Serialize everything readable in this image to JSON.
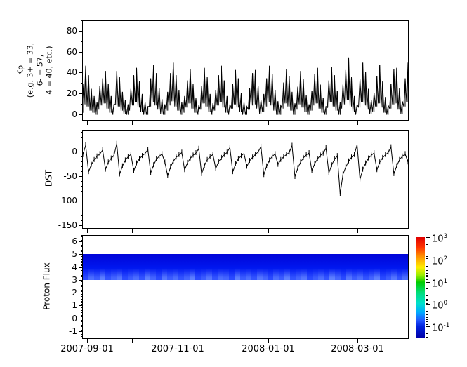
{
  "figure": {
    "background": "#ffffff",
    "frame_color": "#000000",
    "series_color": "#000000"
  },
  "panels": {
    "kp": {
      "ylabel": "Kp\n(e.g. 3+ = 33,\n6- = 57,\n4 = 40, etc.)"
    },
    "dst": {
      "ylabel": "DST"
    },
    "proton": {
      "ylabel": "Proton Flux"
    }
  },
  "xaxis": {
    "span_days": 219,
    "month_ticks": [
      {
        "day": 3,
        "label": "2007-09-01"
      },
      {
        "day": 33,
        "label": ""
      },
      {
        "day": 64,
        "label": "2007-11-01"
      },
      {
        "day": 94,
        "label": ""
      },
      {
        "day": 125,
        "label": "2008-01-01"
      },
      {
        "day": 156,
        "label": ""
      },
      {
        "day": 185,
        "label": "2008-03-01"
      },
      {
        "day": 216,
        "label": ""
      }
    ]
  },
  "colorbar": {
    "scale": "log",
    "ticks": [
      {
        "exp": 3,
        "base": "10",
        "sup": "3"
      },
      {
        "exp": 2,
        "base": "10",
        "sup": "2"
      },
      {
        "exp": 1,
        "base": "10",
        "sup": "1"
      },
      {
        "exp": 0,
        "base": "10",
        "sup": "0"
      },
      {
        "exp": -1,
        "base": "10",
        "sup": "-1"
      }
    ],
    "gradient": [
      "#e00000 0%",
      "#ff3300 10%",
      "#ff9900 20%",
      "#ffee00 30%",
      "#99ee00 38%",
      "#00cc00 45%",
      "#00dd77 55%",
      "#00e0cc 66%",
      "#00aaff 75%",
      "#2255ff 83%",
      "#0022dd 89%",
      "#0000aa 100%"
    ]
  },
  "chart_data": [
    {
      "type": "line",
      "name": "Kp",
      "ylabel": "Kp (e.g. 3+ = 33, 6- = 57, 4 = 40, etc.)",
      "ylim": [
        -5,
        90
      ],
      "yticks": [
        0,
        20,
        40,
        60,
        80
      ],
      "minor_step": 10,
      "x_start": "2007-08-29",
      "x_end": "2008-04-03",
      "series": [
        {
          "name": "kp_low_envelope",
          "values": [
            2,
            10,
            8,
            4,
            2,
            0,
            5,
            9,
            11,
            6,
            2,
            0,
            10,
            8,
            4,
            1,
            0,
            4,
            9,
            12,
            7,
            3,
            0,
            0,
            8,
            12,
            9,
            5,
            1,
            0,
            4,
            9,
            13,
            8,
            4,
            0,
            2,
            7,
            11,
            6,
            2,
            0,
            5,
            11,
            8,
            3,
            0,
            4,
            9,
            12,
            7,
            2,
            0,
            6,
            10,
            7,
            3,
            0,
            0,
            5,
            9,
            10,
            6,
            1,
            3,
            8,
            12,
            9,
            4,
            0,
            0,
            6,
            11,
            8,
            4,
            0,
            5,
            10,
            7,
            3,
            0,
            4,
            9,
            11,
            6,
            2,
            0,
            7,
            12,
            8,
            4,
            0,
            6,
            10,
            14,
            8,
            3,
            0,
            7,
            12,
            9,
            5,
            1,
            3,
            8,
            11,
            7,
            2,
            0,
            6,
            10,
            11,
            5,
            1,
            8,
            12
          ]
        },
        {
          "name": "kp_high_envelope",
          "values": [
            30,
            47,
            38,
            25,
            18,
            12,
            28,
            35,
            42,
            30,
            18,
            10,
            42,
            36,
            22,
            14,
            10,
            25,
            38,
            45,
            32,
            20,
            12,
            8,
            35,
            48,
            40,
            26,
            15,
            10,
            22,
            40,
            50,
            38,
            24,
            12,
            18,
            33,
            44,
            30,
            16,
            9,
            28,
            45,
            36,
            20,
            11,
            24,
            38,
            47,
            33,
            18,
            10,
            30,
            43,
            35,
            21,
            12,
            8,
            26,
            40,
            43,
            28,
            14,
            20,
            35,
            47,
            39,
            24,
            13,
            9,
            31,
            44,
            37,
            22,
            11,
            27,
            42,
            34,
            19,
            10,
            23,
            39,
            45,
            29,
            16,
            8,
            33,
            46,
            38,
            23,
            12,
            29,
            43,
            55,
            36,
            18,
            10,
            34,
            50,
            41,
            25,
            14,
            21,
            37,
            48,
            32,
            17,
            9,
            30,
            44,
            45,
            26,
            13,
            35,
            50
          ]
        }
      ]
    },
    {
      "type": "line",
      "name": "DST",
      "ylim": [
        -155,
        45
      ],
      "yticks": [
        0,
        -50,
        -100,
        -150
      ],
      "minor_step": 10,
      "x_start": "2007-08-29",
      "x_end": "2008-04-03",
      "values": [
        -5,
        15,
        -40,
        -25,
        -15,
        -8,
        -3,
        5,
        -35,
        -20,
        -12,
        -6,
        18,
        -45,
        -28,
        -16,
        -9,
        -4,
        -38,
        -22,
        -13,
        -7,
        -2,
        6,
        -42,
        -26,
        -14,
        -8,
        -3,
        -20,
        -48,
        -30,
        -18,
        -10,
        -5,
        0,
        -36,
        -21,
        -12,
        -6,
        -1,
        8,
        -44,
        -27,
        -15,
        -9,
        -4,
        -33,
        -19,
        -11,
        -5,
        0,
        10,
        -40,
        -24,
        -13,
        -7,
        -2,
        -29,
        -17,
        -10,
        -4,
        1,
        12,
        -46,
        -28,
        -16,
        -8,
        -3,
        -25,
        -15,
        -9,
        -4,
        0,
        14,
        -50,
        -32,
        -20,
        -11,
        -5,
        -1,
        -38,
        -23,
        -13,
        -6,
        -2,
        9,
        -42,
        -26,
        -14,
        -7,
        -85,
        -45,
        -30,
        -18,
        -10,
        -5,
        16,
        -55,
        -35,
        -22,
        -12,
        -6,
        -1,
        -36,
        -20,
        -11,
        -5,
        0,
        11,
        -44,
        -28,
        -15,
        -8,
        -3,
        -20
      ]
    },
    {
      "type": "heatmap",
      "name": "Proton Flux",
      "ylim": [
        -1.5,
        6.5
      ],
      "yticks": [
        6,
        5,
        4,
        3,
        2,
        1,
        0,
        -1
      ],
      "minor_step": 0.125,
      "x_start": "2007-08-29",
      "x_end": "2008-04-03",
      "band": {
        "y_from": 3.0,
        "y_to": 5.05,
        "base_top_color": "#0004d8",
        "base_mid_color": "#0018f0",
        "edge_color_low": "#1030ff",
        "edge_color_high": "#6688ff",
        "column_intensity": [
          0.3,
          0.7,
          0.5,
          0.9,
          0.4,
          0.6,
          0.8,
          0.3,
          0.5,
          0.7,
          0.4,
          0.9,
          0.6,
          0.3,
          0.8,
          0.5,
          0.7,
          0.4,
          0.6,
          0.9,
          0.3,
          0.5,
          0.8,
          0.4,
          0.7,
          0.6,
          0.3,
          0.9,
          0.5,
          0.7,
          0.4,
          0.8,
          0.6,
          0.3,
          0.7,
          0.5,
          0.9,
          0.4,
          0.6,
          0.8,
          0.3,
          0.5,
          0.7,
          0.4,
          0.9,
          0.6,
          0.3,
          0.8,
          0.5,
          0.7,
          0.4,
          0.6,
          0.9,
          0.3,
          0.5,
          0.8,
          0.4,
          0.7
        ]
      },
      "colorbar_range": [
        0.0316,
        1000
      ]
    }
  ]
}
